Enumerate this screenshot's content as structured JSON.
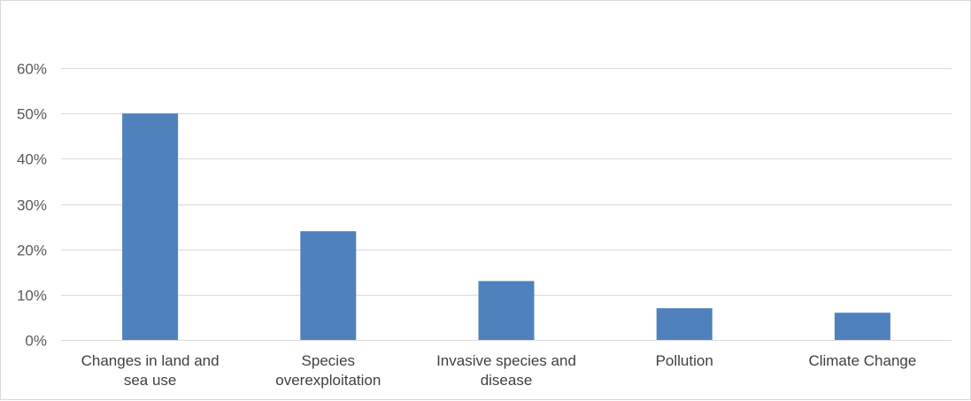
{
  "chart_data": {
    "type": "bar",
    "title": "",
    "xlabel": "",
    "ylabel": "",
    "categories": [
      [
        "Changes in land and",
        "sea use"
      ],
      [
        "Species",
        "overexploitation"
      ],
      [
        "Invasive species and",
        "disease"
      ],
      [
        "Pollution"
      ],
      [
        "Climate Change"
      ]
    ],
    "values": [
      0.5,
      0.24,
      0.13,
      0.07,
      0.06
    ],
    "ylim": [
      0,
      0.6
    ],
    "yticks": [
      0,
      0.1,
      0.2,
      0.3,
      0.4,
      0.5,
      0.6
    ],
    "ytick_labels": [
      "0%",
      "10%",
      "20%",
      "30%",
      "40%",
      "50%",
      "60%"
    ],
    "grid": true,
    "legend": "none",
    "bar_color": "#4f81bd",
    "grid_color": "#d9d9d9"
  }
}
